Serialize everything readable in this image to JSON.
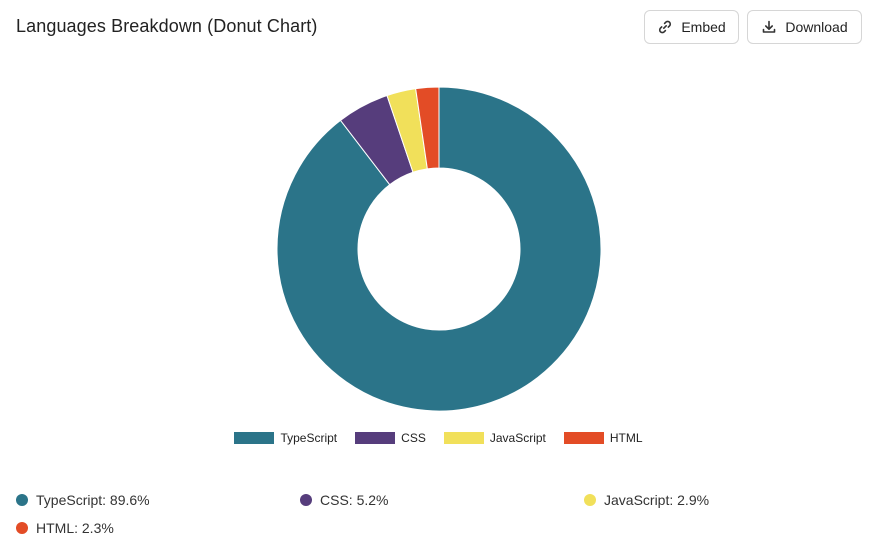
{
  "header": {
    "title": "Languages Breakdown (Donut Chart)",
    "embed_label": "Embed",
    "download_label": "Download",
    "embed_icon": "link-icon",
    "download_icon": "download-icon"
  },
  "chart_data": {
    "type": "pie",
    "donut": true,
    "categories": [
      "TypeScript",
      "CSS",
      "JavaScript",
      "HTML"
    ],
    "values": [
      89.6,
      5.2,
      2.9,
      2.3
    ],
    "colors": [
      "#2b7489",
      "#563d7c",
      "#f1e05a",
      "#e34c26"
    ],
    "legend": "bottom"
  },
  "summary": [
    {
      "label": "TypeScript: 89.6%",
      "color": "#2b7489"
    },
    {
      "label": "CSS: 5.2%",
      "color": "#563d7c"
    },
    {
      "label": "JavaScript: 2.9%",
      "color": "#f1e05a"
    },
    {
      "label": "HTML: 2.3%",
      "color": "#e34c26"
    }
  ]
}
